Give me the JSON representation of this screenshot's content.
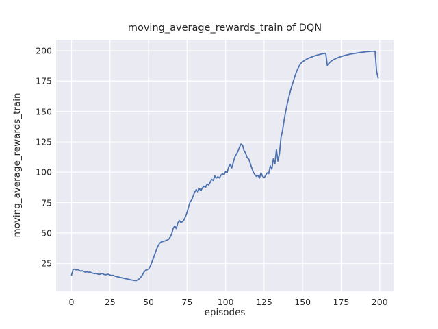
{
  "figure": {
    "title": "moving_average_rewards_train of DQN",
    "xlabel": "episodes",
    "ylabel": "moving_average_rewards_train"
  },
  "chart_data": {
    "type": "line",
    "title": "moving_average_rewards_train of DQN",
    "xlabel": "episodes",
    "ylabel": "moving_average_rewards_train",
    "series_name": "moving_average_rewards_train",
    "legend_position": "none",
    "grid": true,
    "line_color": "#4c72b0",
    "plot_background_color": "#eaeaf2",
    "grid_color": "#ffffff",
    "text_color": "#262626",
    "figure_background_color": "#ffffff",
    "xticks": [
      0,
      25,
      50,
      75,
      100,
      125,
      150,
      175,
      200
    ],
    "yticks": [
      25,
      50,
      75,
      100,
      125,
      150,
      175,
      200
    ],
    "xlim": [
      -10,
      209
    ],
    "ylim": [
      2,
      209
    ],
    "x_start": 0,
    "x_step": 1,
    "values": [
      15.2,
      19.8,
      20.3,
      19.6,
      19.9,
      19.2,
      18.6,
      18.9,
      18.3,
      17.8,
      18.1,
      17.6,
      17.9,
      17.2,
      16.8,
      16.5,
      16.8,
      16.2,
      15.9,
      16.3,
      16.6,
      15.9,
      15.6,
      15.9,
      16.1,
      15.4,
      15.0,
      15.2,
      14.6,
      14.2,
      13.9,
      13.6,
      13.3,
      13.0,
      12.7,
      12.4,
      12.2,
      11.9,
      11.6,
      11.3,
      11.1,
      10.9,
      10.8,
      11.5,
      12.3,
      13.6,
      15.4,
      17.8,
      19.2,
      19.7,
      20.3,
      22.4,
      25.6,
      28.8,
      32.4,
      35.8,
      38.9,
      41.2,
      42.4,
      42.9,
      43.2,
      43.6,
      44.1,
      44.8,
      46.5,
      49.2,
      53.8,
      55.8,
      53.6,
      58.2,
      60.2,
      58.5,
      59.3,
      60.8,
      63.5,
      67.0,
      71.5,
      75.8,
      77.2,
      80.5,
      83.8,
      85.6,
      83.8,
      86.5,
      84.8,
      87.2,
      88.4,
      87.6,
      90.3,
      89.4,
      91.8,
      94.1,
      93.2,
      96.9,
      95.1,
      96.2,
      95.3,
      97.6,
      98.8,
      97.8,
      100.6,
      99.7,
      104.4,
      106.3,
      103.5,
      108.2,
      112.5,
      114.9,
      117.0,
      120.5,
      123.2,
      122.3,
      117.6,
      115.7,
      111.9,
      111.0,
      107.3,
      103.5,
      100.0,
      98.0,
      96.5,
      97.4,
      95.2,
      99.5,
      96.7,
      95.5,
      97.4,
      99.5,
      98.8,
      105.3,
      102.5,
      111.0,
      106.7,
      118.5,
      109.1,
      115.7,
      128.9,
      134.5,
      143.0,
      150.0,
      156.0,
      161.5,
      166.5,
      171.0,
      175.0,
      179.0,
      182.5,
      185.5,
      188.0,
      189.8,
      190.8,
      191.8,
      192.6,
      193.3,
      193.9,
      194.4,
      194.9,
      195.4,
      195.8,
      196.2,
      196.6,
      196.9,
      197.2,
      197.5,
      197.7,
      197.9,
      188.0,
      189.5,
      190.8,
      191.8,
      192.6,
      193.2,
      193.8,
      194.3,
      194.8,
      195.2,
      195.6,
      196.0,
      196.3,
      196.6,
      196.9,
      197.2,
      197.4,
      197.6,
      197.8,
      198.0,
      198.2,
      198.4,
      198.6,
      198.8,
      198.9,
      199.1,
      199.2,
      199.3,
      199.4,
      199.5,
      199.5,
      199.6,
      183.0,
      177.5
    ]
  }
}
